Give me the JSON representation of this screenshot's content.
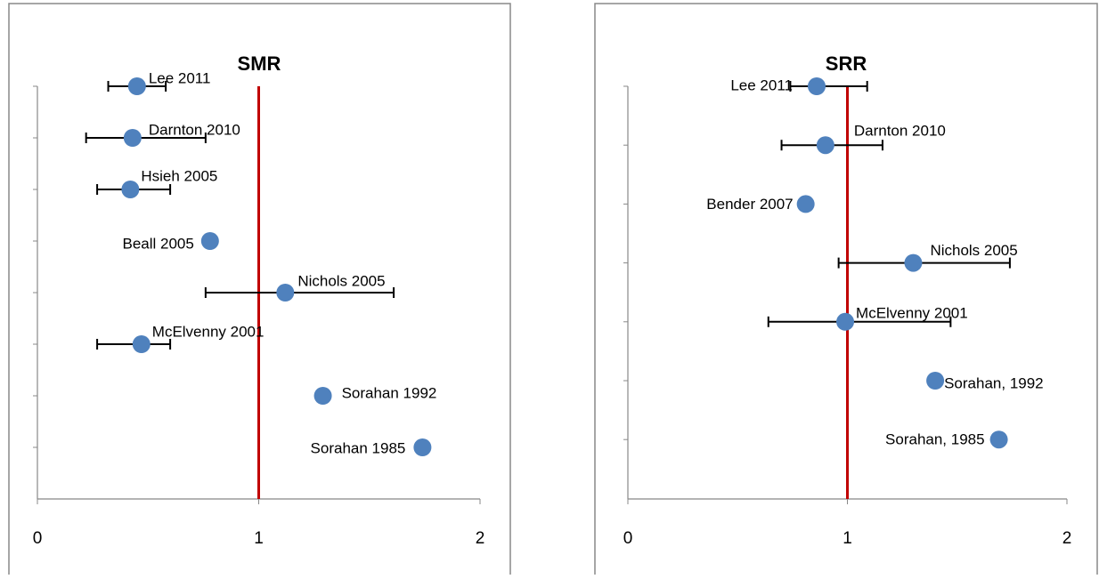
{
  "chart_data": [
    {
      "type": "forest",
      "title": "SMR",
      "labels": [
        "Lee 2011",
        "Darnton 2010",
        "Hsieh 2005",
        "Beall 2005",
        "Nichols 2005",
        "McElvenny 2001",
        "Sorahan 1992",
        "Sorahan 1985"
      ],
      "values": [
        0.45,
        0.43,
        0.42,
        0.78,
        1.12,
        0.47,
        1.29,
        1.74
      ],
      "ci_low": [
        0.32,
        0.22,
        0.27,
        null,
        0.76,
        0.27,
        null,
        null
      ],
      "ci_high": [
        0.58,
        0.76,
        0.6,
        null,
        1.61,
        0.6,
        null,
        null
      ],
      "color": "#4f81bd",
      "reference_line": {
        "value": 1,
        "color": "#c00000"
      },
      "xlim": [
        0,
        2
      ],
      "xticks": [
        0,
        1,
        2
      ]
    },
    {
      "type": "forest",
      "title": "SRR",
      "labels": [
        "Lee 2011",
        "Darnton 2010",
        "Bender 2007",
        "Nichols 2005",
        "McElvenny 2001",
        "Sorahan, 1992",
        "Sorahan, 1985"
      ],
      "values": [
        0.86,
        0.9,
        0.81,
        1.3,
        0.99,
        1.4,
        1.69
      ],
      "ci_low": [
        0.74,
        0.7,
        null,
        0.96,
        0.64,
        null,
        null
      ],
      "ci_high": [
        1.09,
        1.16,
        null,
        1.74,
        1.47,
        null,
        null
      ],
      "color": "#4f81bd",
      "reference_line": {
        "value": 1,
        "color": "#c00000"
      },
      "xlim": [
        0,
        2
      ],
      "xticks": [
        0,
        1,
        2
      ]
    }
  ]
}
